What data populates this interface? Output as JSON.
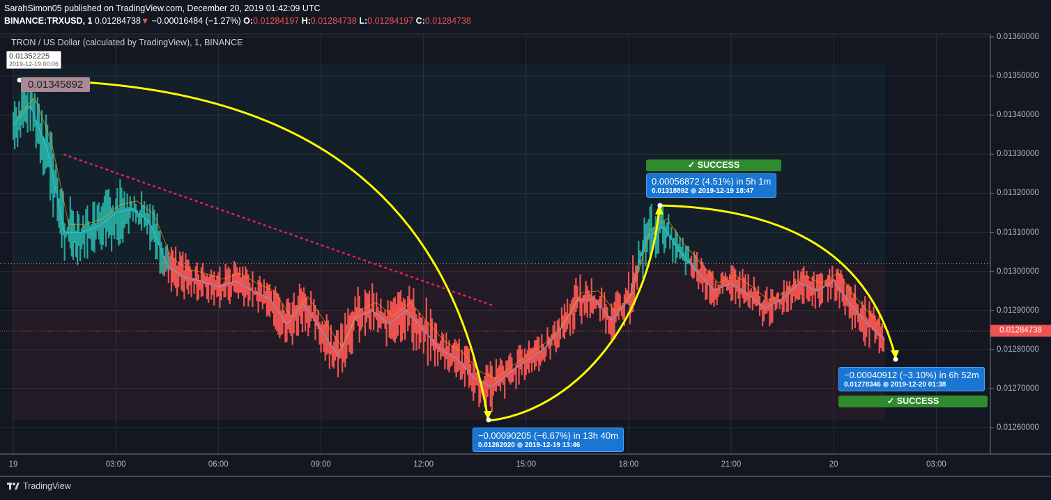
{
  "header": {
    "published": "SarahSimon05 published on TradingView.com, December 20, 2019 01:42:09 UTC",
    "symbol": "BINANCE:TRXUSD, 1",
    "last": "0.01284738",
    "change": "−0.00016484 (−1.27%)",
    "o_label": "O:",
    "o": "0.01284197",
    "h_label": "H:",
    "h": "0.01284738",
    "l_label": "L:",
    "l": "0.01284197",
    "c_label": "C:",
    "c": "0.01284738"
  },
  "pane_title": "TRON / US Dollar (calculated by TradingView), 1, BINANCE",
  "tooltip": {
    "price": "0.01352225",
    "date": "2019-12-19 00:06"
  },
  "price_box": "0.01345892",
  "measurements": [
    {
      "line1": "−0.00090205 (−6.67%) in 13h 40m",
      "price": "0.01262020",
      "date": "2019-12-19  13:46"
    },
    {
      "line1": "0.00056872 (4.51%) in 5h 1m",
      "price": "0.01318892",
      "date": "2019-12-19  18:47",
      "status": "✓ SUCCESS"
    },
    {
      "line1": "−0.00040912 (−3.10%) in 6h 52m",
      "price": "0.01278346",
      "date": "2019-12-20  01:38",
      "status": "✓ SUCCESS"
    }
  ],
  "footer": {
    "brand": "TradingView"
  },
  "colors": {
    "up": "#26a69a",
    "down": "#ef5350",
    "arrow": "#ffff00",
    "trend": "#e91e63",
    "label": "#1976d2",
    "success": "#2e8b2e"
  },
  "chart_data": {
    "type": "baseline-line",
    "title": "TRON / US Dollar (calculated by TradingView), 1, BINANCE",
    "xlabel": "",
    "ylabel": "",
    "ylim": [
      0.0126,
      0.0136
    ],
    "y_ticks": [
      "0.01360000",
      "0.01350000",
      "0.01340000",
      "0.01330000",
      "0.01320000",
      "0.01310000",
      "0.01300000",
      "0.01290000",
      "0.01280000",
      "0.01270000",
      "0.01260000"
    ],
    "y_tick_values": [
      0.0136,
      0.0135,
      0.0134,
      0.0133,
      0.0132,
      0.0131,
      0.013,
      0.0129,
      0.0128,
      0.0127,
      0.0126
    ],
    "x_ticks": [
      "19",
      "03:00",
      "06:00",
      "09:00",
      "12:00",
      "15:00",
      "18:00",
      "21:00",
      "20",
      "03:00"
    ],
    "x_tick_hours": [
      0,
      3,
      6,
      9,
      12,
      15,
      18,
      21,
      24,
      27
    ],
    "baseline": 0.01302,
    "current_price": 0.01284738,
    "current_price_label": "0.01284738",
    "series_hours_from_dec19": [
      0,
      0.5,
      1,
      1.5,
      2,
      2.5,
      3,
      3.5,
      4,
      4.5,
      5,
      5.5,
      6,
      6.5,
      7,
      7.5,
      8,
      8.5,
      9,
      9.5,
      10,
      10.5,
      11,
      11.5,
      12,
      12.5,
      13,
      13.5,
      14,
      14.5,
      15,
      15.5,
      16,
      16.5,
      17,
      17.5,
      18,
      18.5,
      19,
      19.5,
      20,
      20.5,
      21,
      21.5,
      22,
      22.5,
      23,
      23.5,
      24,
      24.5,
      25,
      25.5
    ],
    "high": [
      0.01345,
      0.0135,
      0.01342,
      0.0132,
      0.01318,
      0.01318,
      0.01325,
      0.01322,
      0.0132,
      0.01308,
      0.01305,
      0.01303,
      0.01302,
      0.01303,
      0.013,
      0.01298,
      0.01295,
      0.01298,
      0.01292,
      0.01285,
      0.01296,
      0.01297,
      0.01293,
      0.01298,
      0.01295,
      0.01285,
      0.01283,
      0.0128,
      0.01278,
      0.0128,
      0.01282,
      0.01285,
      0.0129,
      0.013,
      0.01298,
      0.01293,
      0.013,
      0.01317,
      0.01318,
      0.0131,
      0.01305,
      0.013,
      0.01302,
      0.013,
      0.01296,
      0.01298,
      0.01302,
      0.013,
      0.01302,
      0.01298,
      0.01293,
      0.01287
    ],
    "low": [
      0.0133,
      0.01335,
      0.0132,
      0.013,
      0.01302,
      0.01305,
      0.01305,
      0.0131,
      0.01305,
      0.01295,
      0.01292,
      0.01292,
      0.0129,
      0.01292,
      0.0129,
      0.01288,
      0.01278,
      0.01285,
      0.01278,
      0.01272,
      0.0128,
      0.01283,
      0.0128,
      0.01282,
      0.01275,
      0.01275,
      0.01272,
      0.01265,
      0.01263,
      0.01268,
      0.01272,
      0.01275,
      0.0128,
      0.01285,
      0.01288,
      0.01282,
      0.01285,
      0.013,
      0.01305,
      0.013,
      0.01295,
      0.0129,
      0.01292,
      0.01288,
      0.01285,
      0.01288,
      0.01292,
      0.0129,
      0.01293,
      0.01285,
      0.0128,
      0.01278
    ]
  }
}
